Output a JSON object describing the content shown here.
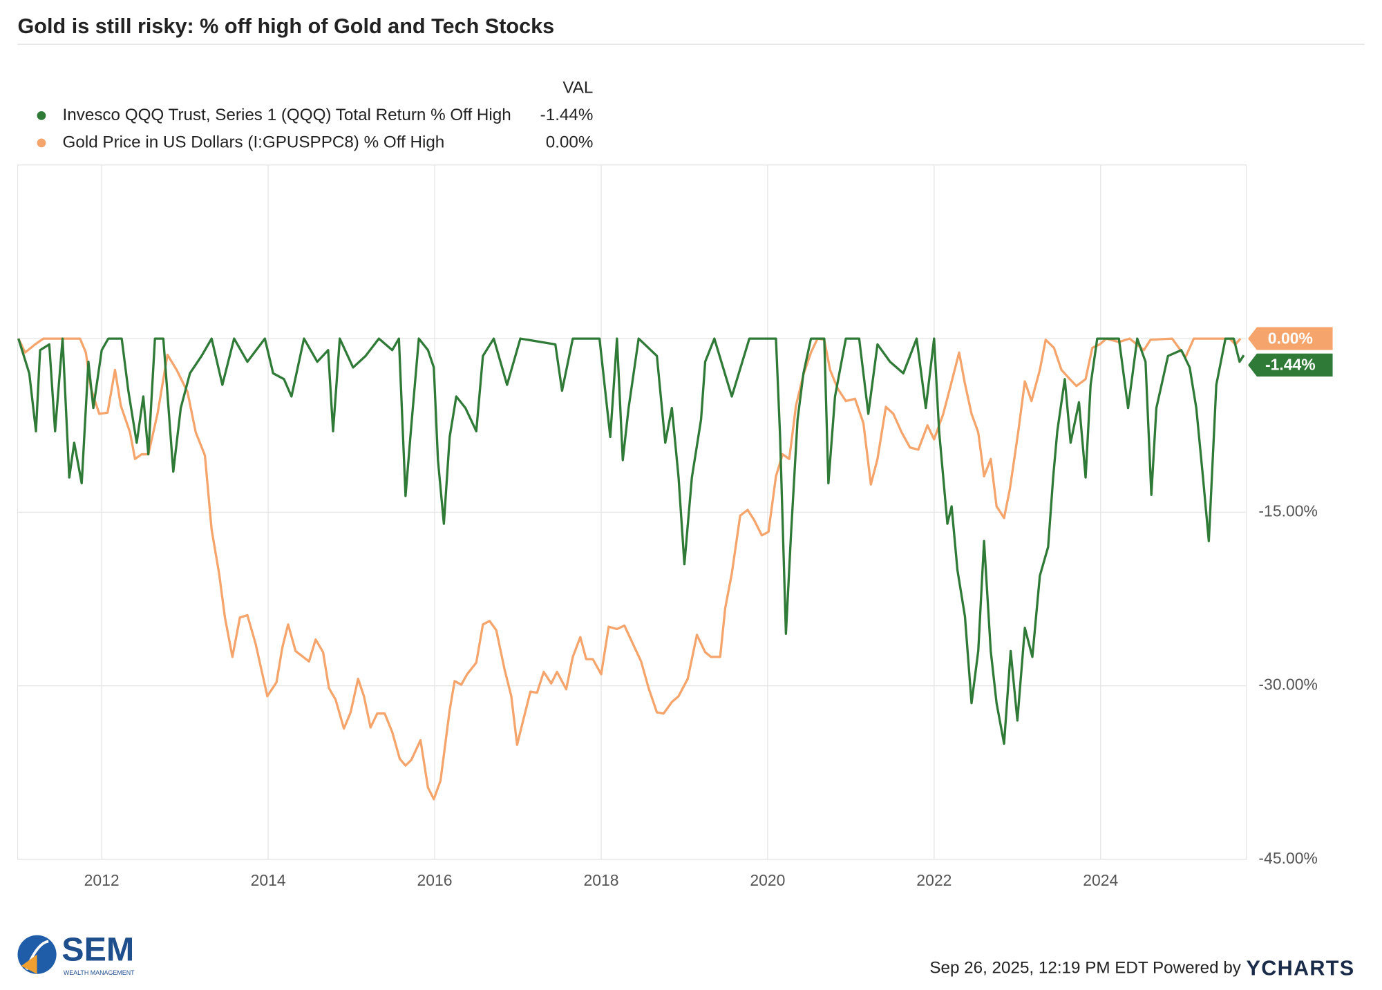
{
  "chart_data": {
    "type": "line",
    "title": "Gold is still risky: % off high of Gold and Tech Stocks",
    "legend_header": "VAL",
    "xlim": [
      2010.99,
      2025.75
    ],
    "xticks": [
      2012,
      2014,
      2016,
      2018,
      2020,
      2022,
      2024
    ],
    "ylim": [
      -45,
      15
    ],
    "yticks": [
      {
        "value": -45,
        "label": "-45.00%"
      },
      {
        "value": -30,
        "label": "-30.00%"
      },
      {
        "value": -15,
        "label": "-15.00%"
      },
      {
        "value": 0,
        "label": "0.00%"
      }
    ],
    "grid": true,
    "series": [
      {
        "name": "Invesco QQQ Trust, Series 1 (QQQ) Total Return % Off High",
        "color": "#2e7a36",
        "current": "-1.44%",
        "x": [
          2011.0,
          2011.13,
          2011.21,
          2011.26,
          2011.37,
          2011.44,
          2011.53,
          2011.61,
          2011.67,
          2011.76,
          2011.84,
          2011.9,
          2012.0,
          2012.08,
          2012.24,
          2012.32,
          2012.42,
          2012.5,
          2012.56,
          2012.64,
          2012.74,
          2012.86,
          2012.95,
          2013.06,
          2013.2,
          2013.32,
          2013.45,
          2013.59,
          2013.75,
          2013.96,
          2014.06,
          2014.19,
          2014.28,
          2014.43,
          2014.59,
          2014.72,
          2014.78,
          2014.86,
          2015.02,
          2015.17,
          2015.33,
          2015.49,
          2015.57,
          2015.65,
          2015.72,
          2015.81,
          2015.92,
          2015.99,
          2016.04,
          2016.11,
          2016.18,
          2016.26,
          2016.37,
          2016.5,
          2016.58,
          2016.71,
          2016.87,
          2017.03,
          2017.45,
          2017.53,
          2017.66,
          2017.98,
          2018.11,
          2018.19,
          2018.26,
          2018.33,
          2018.45,
          2018.67,
          2018.77,
          2018.85,
          2018.93,
          2019.0,
          2019.09,
          2019.2,
          2019.25,
          2019.36,
          2019.57,
          2019.78,
          2020.1,
          2020.15,
          2020.22,
          2020.28,
          2020.36,
          2020.43,
          2020.52,
          2020.68,
          2020.73,
          2020.81,
          2020.94,
          2021.1,
          2021.21,
          2021.32,
          2021.47,
          2021.63,
          2021.79,
          2021.9,
          2022.0,
          2022.06,
          2022.16,
          2022.21,
          2022.28,
          2022.37,
          2022.45,
          2022.53,
          2022.6,
          2022.68,
          2022.75,
          2022.84,
          2022.92,
          2023.0,
          2023.09,
          2023.18,
          2023.27,
          2023.37,
          2023.43,
          2023.48,
          2023.57,
          2023.64,
          2023.74,
          2023.82,
          2023.88,
          2023.96,
          2024.22,
          2024.33,
          2024.44,
          2024.54,
          2024.61,
          2024.67,
          2024.81,
          2024.97,
          2025.07,
          2025.15,
          2025.23,
          2025.3,
          2025.39,
          2025.5,
          2025.6,
          2025.67,
          2025.72
        ],
        "values": [
          0,
          -3,
          -8,
          -1,
          -0.5,
          -8,
          0,
          -12,
          -9,
          -12.5,
          -2,
          -6,
          -1,
          0,
          0,
          -4.5,
          -9,
          -5,
          -10,
          0,
          0,
          -11.5,
          -6,
          -3,
          -1.5,
          0,
          -4,
          0,
          -2,
          0,
          -3,
          -3.5,
          -5,
          0,
          -2,
          -1,
          -8,
          0,
          -2.5,
          -1.5,
          0,
          -1,
          0,
          -13.6,
          -7.5,
          0,
          -1,
          -2.5,
          -10.5,
          -16,
          -8.5,
          -5,
          -6,
          -8,
          -1.5,
          0,
          -4,
          0,
          -0.5,
          -4.5,
          0,
          0,
          -8.5,
          0,
          -10.5,
          -6,
          0,
          -1.5,
          -9,
          -6,
          -12,
          -19.5,
          -12,
          -7,
          -2,
          0,
          -5,
          0,
          0,
          -8.5,
          -25.5,
          -17,
          -7,
          -3,
          0,
          0,
          -12.5,
          -5,
          0,
          0,
          -6.5,
          -0.5,
          -2,
          -3,
          0,
          -6,
          0,
          -8,
          -16,
          -14.5,
          -20,
          -24,
          -31.5,
          -27,
          -17.5,
          -27,
          -31.5,
          -35,
          -27,
          -33,
          -25,
          -27.5,
          -20.5,
          -18,
          -12,
          -8,
          -3.5,
          -9,
          -5.5,
          -12,
          -4,
          0,
          0,
          -6,
          0,
          -2,
          -13.5,
          -6,
          -1.5,
          -1,
          -2.5,
          -6,
          -12,
          -17.5,
          -4,
          0,
          0,
          -2,
          -1.44
        ]
      },
      {
        "name": "Gold Price in US Dollars (I:GPUSPPC8) % Off High",
        "color": "#f5a46b",
        "current": "0.00%",
        "x": [
          2011.0,
          2011.08,
          2011.2,
          2011.3,
          2011.74,
          2011.81,
          2011.87,
          2011.97,
          2012.07,
          2012.16,
          2012.23,
          2012.34,
          2012.4,
          2012.48,
          2012.56,
          2012.67,
          2012.79,
          2012.9,
          2013.03,
          2013.13,
          2013.24,
          2013.32,
          2013.41,
          2013.48,
          2013.57,
          2013.66,
          2013.75,
          2013.85,
          2013.99,
          2014.1,
          2014.17,
          2014.24,
          2014.33,
          2014.49,
          2014.57,
          2014.66,
          2014.73,
          2014.81,
          2014.91,
          2014.99,
          2015.08,
          2015.15,
          2015.23,
          2015.31,
          2015.4,
          2015.49,
          2015.58,
          2015.65,
          2015.72,
          2015.83,
          2015.92,
          2015.99,
          2016.07,
          2016.18,
          2016.24,
          2016.32,
          2016.39,
          2016.5,
          2016.58,
          2016.66,
          2016.74,
          2016.84,
          2016.92,
          2016.99,
          2017.07,
          2017.15,
          2017.23,
          2017.31,
          2017.4,
          2017.47,
          2017.58,
          2017.66,
          2017.75,
          2017.82,
          2017.9,
          2018.0,
          2018.09,
          2018.19,
          2018.28,
          2018.37,
          2018.48,
          2018.57,
          2018.67,
          2018.75,
          2018.85,
          2018.93,
          2019.04,
          2019.15,
          2019.25,
          2019.32,
          2019.43,
          2019.49,
          2019.57,
          2019.67,
          2019.76,
          2019.84,
          2019.93,
          2020.01,
          2020.1,
          2020.18,
          2020.26,
          2020.34,
          2020.43,
          2020.52,
          2020.6,
          2020.68,
          2020.75,
          2020.84,
          2020.94,
          2021.05,
          2021.15,
          2021.24,
          2021.32,
          2021.42,
          2021.51,
          2021.61,
          2021.71,
          2021.81,
          2021.92,
          2022.0,
          2022.11,
          2022.19,
          2022.3,
          2022.37,
          2022.45,
          2022.53,
          2022.6,
          2022.68,
          2022.75,
          2022.84,
          2022.91,
          2023.01,
          2023.09,
          2023.17,
          2023.27,
          2023.34,
          2023.44,
          2023.53,
          2023.63,
          2023.71,
          2023.82,
          2023.9,
          2023.99,
          2024.07,
          2024.22,
          2024.35,
          2024.52,
          2024.6,
          2024.86,
          2025.02,
          2025.12,
          2025.55,
          2025.62,
          2025.68
        ],
        "values": [
          0,
          -1.2,
          -0.5,
          0,
          0,
          -1.2,
          -4.3,
          -6.5,
          -6.4,
          -2.7,
          -5.8,
          -8.1,
          -10.4,
          -10,
          -10,
          -6.5,
          -1.4,
          -2.7,
          -4.6,
          -8.1,
          -10.1,
          -16.5,
          -20.3,
          -24.1,
          -27.5,
          -24.1,
          -23.9,
          -26.4,
          -30.9,
          -29.7,
          -26.7,
          -24.7,
          -27,
          -27.9,
          -26,
          -27.1,
          -30.2,
          -31.2,
          -33.7,
          -32.3,
          -29.4,
          -30.9,
          -33.6,
          -32.4,
          -32.4,
          -34,
          -36.3,
          -36.9,
          -36.4,
          -34.7,
          -38.8,
          -39.8,
          -38.2,
          -32.1,
          -29.6,
          -29.9,
          -29,
          -28,
          -24.7,
          -24.4,
          -25.2,
          -28.6,
          -30.9,
          -35.1,
          -32.8,
          -30.5,
          -30.6,
          -28.8,
          -29.8,
          -28.8,
          -30.3,
          -27.5,
          -25.8,
          -27.7,
          -27.7,
          -29,
          -24.9,
          -25.1,
          -24.8,
          -26.2,
          -27.9,
          -30.2,
          -32.3,
          -32.4,
          -31.4,
          -30.9,
          -29.4,
          -25.6,
          -27.1,
          -27.5,
          -27.5,
          -23.3,
          -20.3,
          -15.3,
          -14.8,
          -15.7,
          -17,
          -16.7,
          -11.9,
          -10,
          -10.4,
          -5.8,
          -3.1,
          -1.2,
          0,
          -0.1,
          -2.7,
          -4.3,
          -5.4,
          -5.2,
          -7.3,
          -12.6,
          -10.4,
          -5.9,
          -6.5,
          -8.1,
          -9.4,
          -9.6,
          -7.5,
          -8.7,
          -6.5,
          -4.3,
          -1.2,
          -3.9,
          -6.5,
          -8.1,
          -11.9,
          -10.4,
          -14.5,
          -15.5,
          -13,
          -8.1,
          -3.7,
          -5.4,
          -2.7,
          -0.1,
          -0.8,
          -2.7,
          -3.5,
          -4.1,
          -3.5,
          -0.8,
          -0.5,
          0,
          -0.3,
          0,
          -1,
          -0.1,
          0,
          -1.6,
          0,
          0,
          -0.5,
          0
        ]
      }
    ]
  },
  "footer": {
    "timestamp": "Sep 26, 2025, 12:19 PM EDT Powered by",
    "brand": "YCHARTS",
    "logo_name": "SEM",
    "logo_tagline": "WEALTH MANAGEMENT"
  }
}
